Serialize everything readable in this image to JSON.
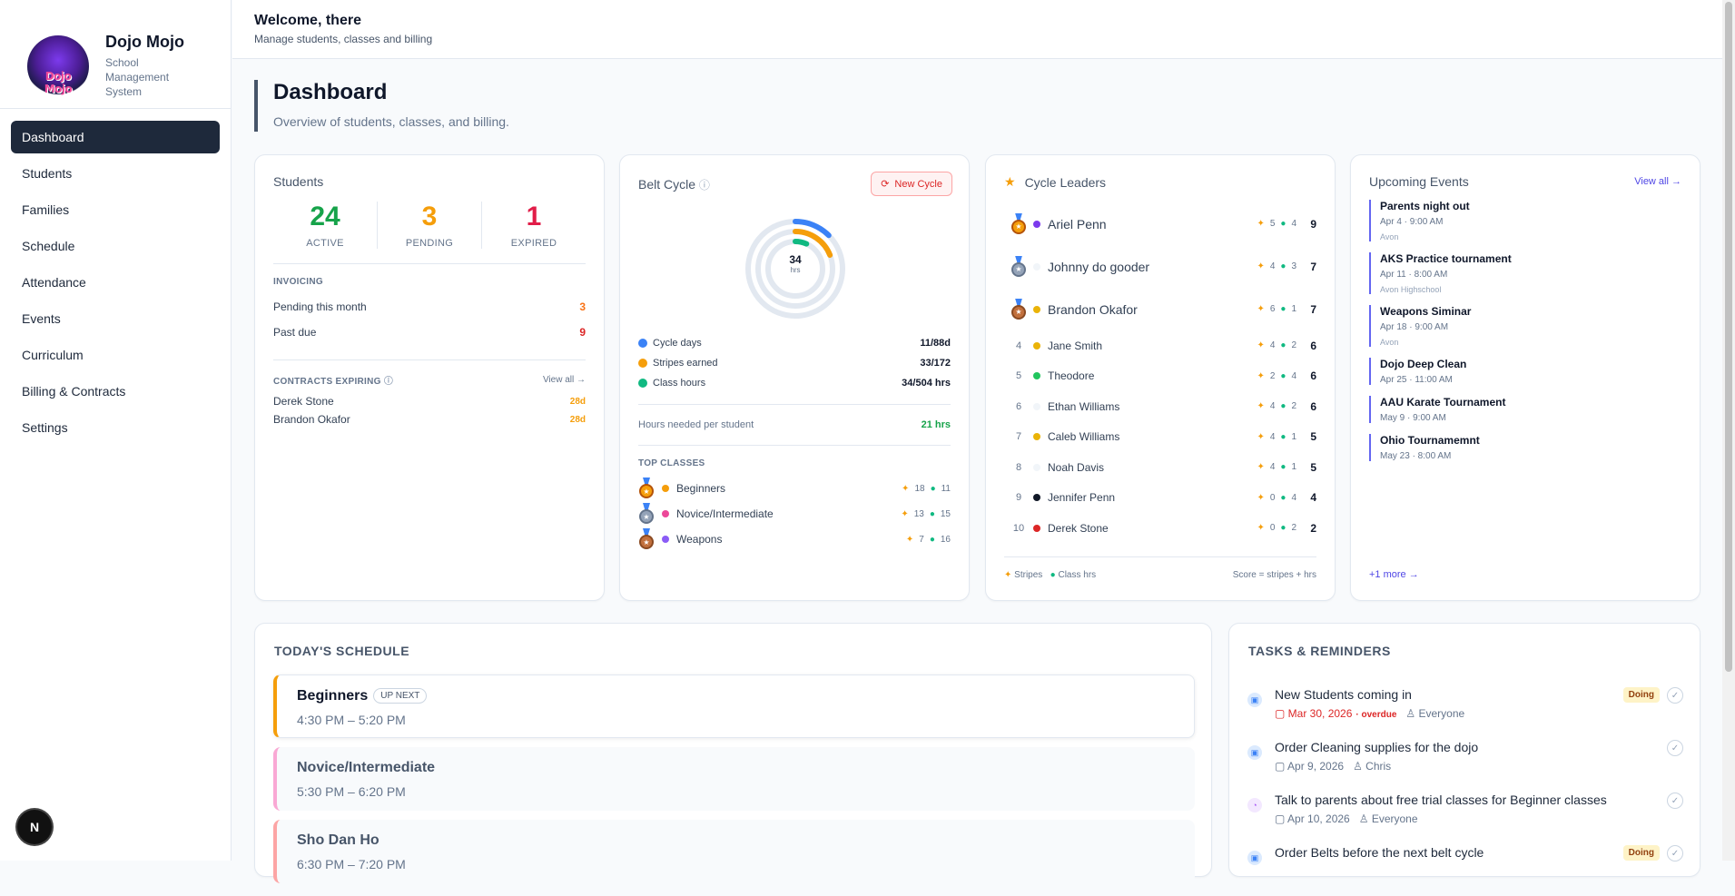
{
  "brand": {
    "name": "Dojo Mojo",
    "subtitle": "School Management System",
    "logo_text": "Dojo Mojo"
  },
  "nav": [
    {
      "label": "Dashboard",
      "active": true
    },
    {
      "label": "Students"
    },
    {
      "label": "Families"
    },
    {
      "label": "Schedule"
    },
    {
      "label": "Attendance"
    },
    {
      "label": "Events"
    },
    {
      "label": "Curriculum"
    },
    {
      "label": "Billing & Contracts"
    },
    {
      "label": "Settings"
    }
  ],
  "devtools_badge": "N",
  "topbar": {
    "title": "Welcome, there",
    "subtitle": "Manage students, classes and billing"
  },
  "page": {
    "title": "Dashboard",
    "subtitle": "Overview of students, classes, and billing."
  },
  "students": {
    "title": "Students",
    "stats": [
      {
        "value": "24",
        "label": "ACTIVE",
        "color": "#16a34a"
      },
      {
        "value": "3",
        "label": "PENDING",
        "color": "#f59e0b"
      },
      {
        "value": "1",
        "label": "EXPIRED",
        "color": "#e11d48"
      }
    ],
    "invoicing_label": "INVOICING",
    "invoicing": [
      {
        "label": "Pending this month",
        "value": "3",
        "color": "#f97316"
      },
      {
        "label": "Past due",
        "value": "9",
        "color": "#dc2626"
      }
    ],
    "contracts_label": "CONTRACTS EXPIRING",
    "contracts_view_all": "View all →",
    "contracts": [
      {
        "name": "Derek Stone",
        "days": "28d"
      },
      {
        "name": "Brandon Okafor",
        "days": "28d"
      }
    ]
  },
  "belt_cycle": {
    "title": "Belt Cycle",
    "new_cycle_label": "New Cycle",
    "center_value": "34",
    "center_unit": "hrs",
    "metrics": [
      {
        "label": "Cycle days",
        "value": "11/88d",
        "color": "#3b82f6",
        "fraction": 0.125
      },
      {
        "label": "Stripes earned",
        "value": "33/172",
        "color": "#f59e0b",
        "fraction": 0.19
      },
      {
        "label": "Class hours",
        "value": "34/504 hrs",
        "color": "#10b981",
        "fraction": 0.067
      }
    ],
    "hours_needed_label": "Hours needed per student",
    "hours_needed_value": "21 hrs",
    "top_classes_label": "TOP CLASSES",
    "top_classes": [
      {
        "name": "Beginners",
        "medal": "gold",
        "dot": "#f59e0b",
        "stripes": "18",
        "hours": "11"
      },
      {
        "name": "Novice/Intermediate",
        "medal": "silver",
        "dot": "#ec4899",
        "stripes": "13",
        "hours": "15"
      },
      {
        "name": "Weapons",
        "medal": "bronze",
        "dot": "#8b5cf6",
        "stripes": "7",
        "hours": "16"
      }
    ]
  },
  "leaders": {
    "title": "Cycle Leaders",
    "rows": [
      {
        "rank": "1",
        "medal": "gold",
        "name": "Ariel Penn",
        "dot": "#7c3aed",
        "stripes": "5",
        "hours": "4",
        "score": "9"
      },
      {
        "rank": "2",
        "medal": "silver",
        "name": "Johnny do gooder",
        "dot": "#f1f5f9",
        "stripes": "4",
        "hours": "3",
        "score": "7"
      },
      {
        "rank": "3",
        "medal": "bronze",
        "name": "Brandon Okafor",
        "dot": "#eab308",
        "stripes": "6",
        "hours": "1",
        "score": "7"
      },
      {
        "rank": "4",
        "name": "Jane Smith",
        "dot": "#eab308",
        "stripes": "4",
        "hours": "2",
        "score": "6"
      },
      {
        "rank": "5",
        "name": "Theodore",
        "dot": "#22c55e",
        "stripes": "2",
        "hours": "4",
        "score": "6"
      },
      {
        "rank": "6",
        "name": "Ethan Williams",
        "dot": "#f1f5f9",
        "stripes": "4",
        "hours": "2",
        "score": "6"
      },
      {
        "rank": "7",
        "name": "Caleb Williams",
        "dot": "#eab308",
        "stripes": "4",
        "hours": "1",
        "score": "5"
      },
      {
        "rank": "8",
        "name": "Noah Davis",
        "dot": "#f1f5f9",
        "stripes": "4",
        "hours": "1",
        "score": "5"
      },
      {
        "rank": "9",
        "name": "Jennifer Penn",
        "dot": "#111827",
        "stripes": "0",
        "hours": "4",
        "score": "4"
      },
      {
        "rank": "10",
        "name": "Derek Stone",
        "dot": "#dc2626",
        "stripes": "0",
        "hours": "2",
        "score": "2"
      }
    ],
    "legend_stripes": "Stripes",
    "legend_hours": "Class hrs",
    "legend_formula": "Score = stripes + hrs"
  },
  "events": {
    "title": "Upcoming Events",
    "view_all": "View all →",
    "items": [
      {
        "title": "Parents night out",
        "date": "Apr 4 · 9:00 AM",
        "location": "Avon"
      },
      {
        "title": "AKS Practice tournament",
        "date": "Apr 11 · 8:00 AM",
        "location": "Avon Highschool"
      },
      {
        "title": "Weapons Siminar",
        "date": "Apr 18 · 9:00 AM",
        "location": "Avon"
      },
      {
        "title": "Dojo Deep Clean",
        "date": "Apr 25 · 11:00 AM",
        "location": ""
      },
      {
        "title": "AAU Karate Tournament",
        "date": "May 9 · 9:00 AM",
        "location": ""
      },
      {
        "title": "Ohio Tournamemnt",
        "date": "May 23 · 8:00 AM",
        "location": ""
      }
    ],
    "more": "+1 more →"
  },
  "schedule": {
    "title": "TODAY'S SCHEDULE",
    "up_next_label": "UP NEXT",
    "items": [
      {
        "name": "Beginners",
        "time": "4:30 PM – 5:20 PM",
        "color": "#f59e0b",
        "up_next": true
      },
      {
        "name": "Novice/Intermediate",
        "time": "5:30 PM – 6:20 PM",
        "color": "#f9a8d4"
      },
      {
        "name": "Sho Dan Ho",
        "time": "6:30 PM – 7:20 PM",
        "color": "#fca5a5"
      }
    ]
  },
  "tasks": {
    "title": "TASKS & REMINDERS",
    "items": [
      {
        "title": "New Students coming in",
        "date": "Mar 30, 2026",
        "overdue": "· overdue",
        "assignee": "Everyone",
        "status": "Doing"
      },
      {
        "title": "Order Cleaning supplies for the dojo",
        "date": "Apr 9, 2026",
        "assignee": "Chris",
        "status": ""
      },
      {
        "title": "Talk to parents about free trial classes for Beginner classes",
        "date": "Apr 10, 2026",
        "assignee": "Everyone",
        "status": ""
      },
      {
        "title": "Order Belts before the next belt cycle",
        "date": "",
        "assignee": "",
        "status": "Doing"
      }
    ]
  }
}
